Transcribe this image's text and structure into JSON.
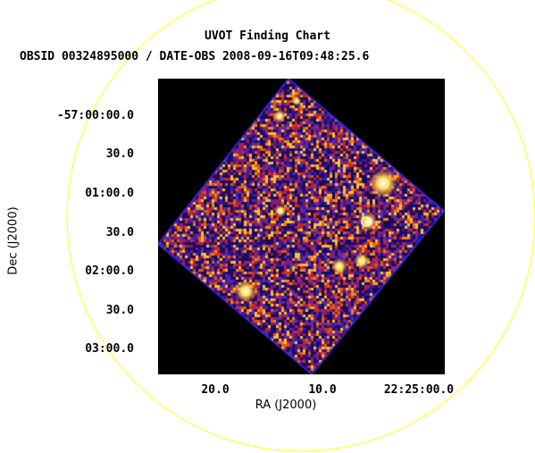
{
  "header": {
    "title": "UVOT Finding Chart",
    "subtitle": "OBSID 00324895000 / DATE-OBS 2008-09-16T09:48:25.6"
  },
  "axes": {
    "xlabel": "RA (J2000)",
    "ylabel": "Dec (J2000)",
    "ra_ticks": [
      "20.0",
      "10.0",
      "22:25:00.0"
    ],
    "dec_ticks": [
      "-57:00:00.0",
      "30.0",
      "01:00.0",
      "30.0",
      "02:00.0",
      "30.0",
      "03:00.0"
    ]
  },
  "colors": {
    "circle": "#ffff33",
    "frame_background": "#000000",
    "source_marker": "#ffffff"
  }
}
